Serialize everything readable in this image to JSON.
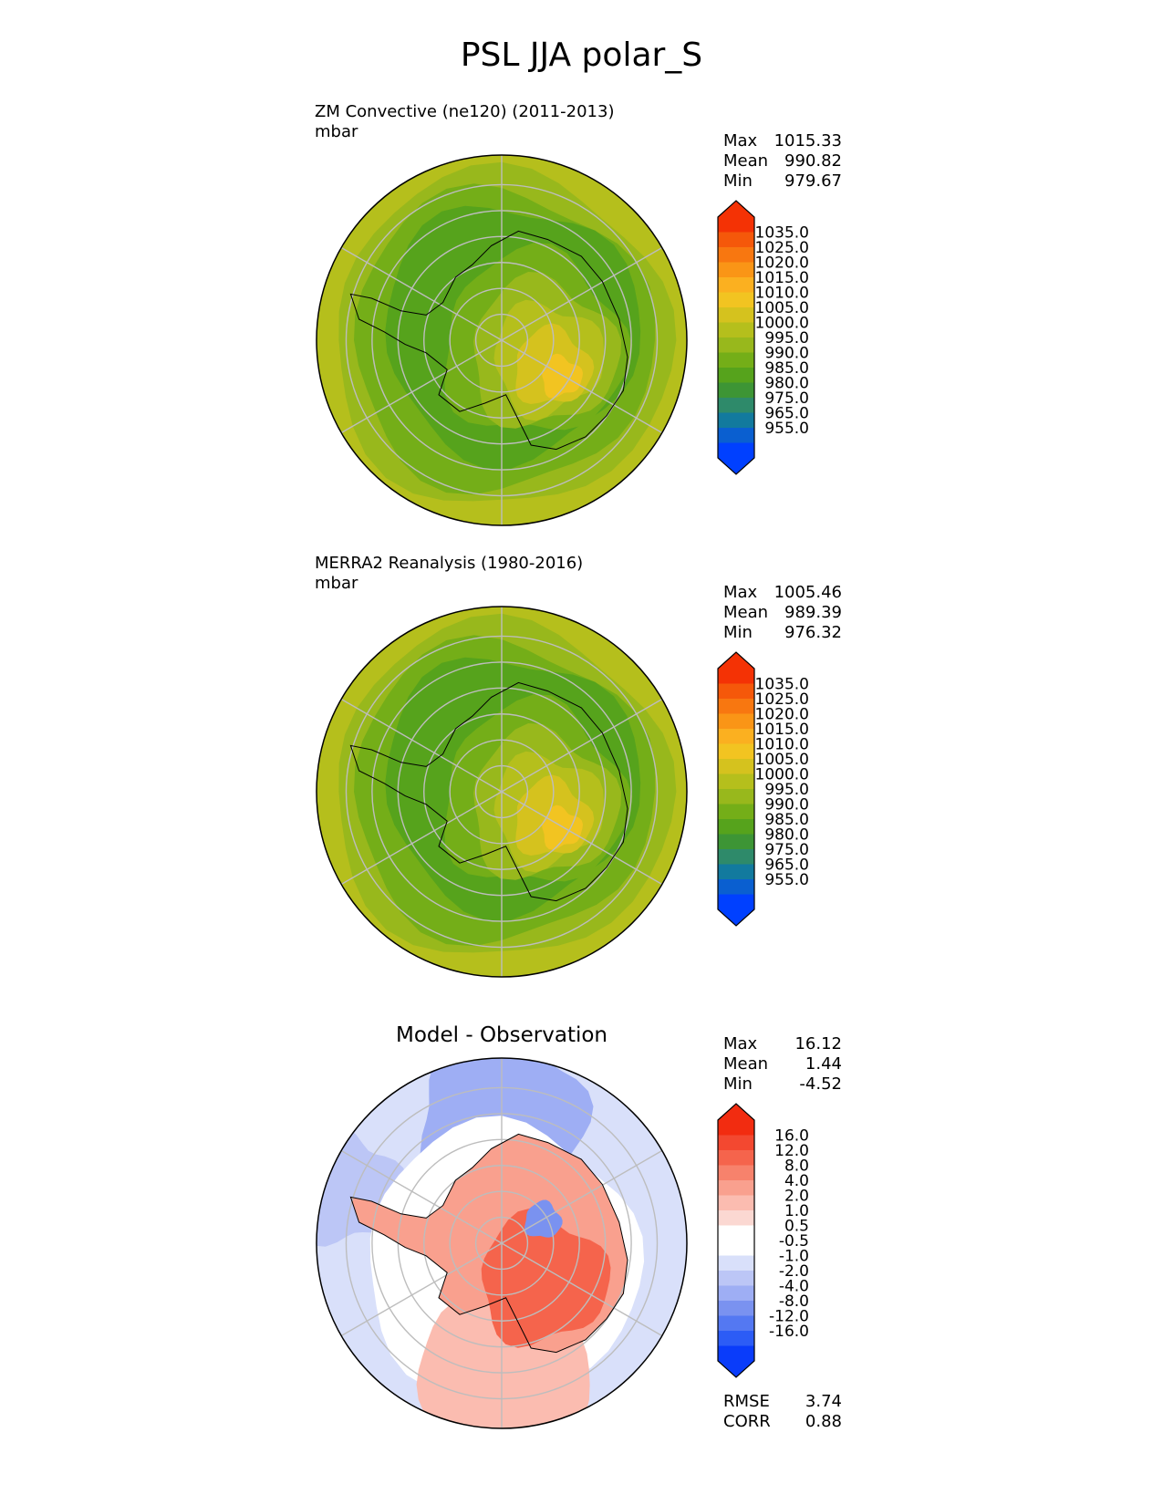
{
  "figure_title": "PSL JJA polar_S",
  "colors": {
    "abs_levels": [
      "#0040ff",
      "#0a5fd0",
      "#127a9e",
      "#2e8a6a",
      "#3d9535",
      "#56a31c",
      "#74ae18",
      "#98b81c",
      "#b5bf1c",
      "#d5c21e",
      "#f2c421",
      "#fbb020",
      "#fa9516",
      "#f87710",
      "#f5580a",
      "#f43205"
    ],
    "diff_levels": [
      "#0a3cfa",
      "#2c5cf6",
      "#5478f2",
      "#7a92f0",
      "#9eaef4",
      "#bcc6f6",
      "#d9e0fa",
      "#ffffff",
      "#ffffff",
      "#fbd8d2",
      "#fbbcb0",
      "#f9a08e",
      "#f7826c",
      "#f5644c",
      "#f34830",
      "#f22c10"
    ],
    "grid": "#bdbdbd",
    "coast": "#000000"
  },
  "panels": {
    "test": {
      "title": "ZM Convective (ne120) (2011-2013)",
      "units": "mbar",
      "stats": [
        {
          "label": "Max",
          "value": "1015.33"
        },
        {
          "label": "Mean",
          "value": "990.82"
        },
        {
          "label": "Min",
          "value": "979.67"
        }
      ]
    },
    "ref": {
      "title": "MERRA2 Reanalysis (1980-2016)",
      "units": "mbar",
      "stats": [
        {
          "label": "Max",
          "value": "1005.46"
        },
        {
          "label": "Mean",
          "value": "989.39"
        },
        {
          "label": "Min",
          "value": "976.32"
        }
      ]
    },
    "diff": {
      "title": "Model - Observation",
      "stats": [
        {
          "label": "Max",
          "value": "16.12"
        },
        {
          "label": "Mean",
          "value": "1.44"
        },
        {
          "label": "Min",
          "value": "-4.52"
        }
      ],
      "metrics": [
        {
          "label": "RMSE",
          "value": "3.74"
        },
        {
          "label": "CORR",
          "value": "0.88"
        }
      ]
    }
  },
  "chart_data": [
    {
      "type": "heatmap",
      "projection": "south polar stereographic",
      "title": "ZM Convective (ne120) (2011-2013)",
      "units": "mbar",
      "colorbar_ticks": [
        "1035.0",
        "1025.0",
        "1020.0",
        "1015.0",
        "1010.0",
        "1005.0",
        "1000.0",
        "995.0",
        "990.0",
        "985.0",
        "980.0",
        "975.0",
        "965.0",
        "955.0"
      ],
      "stats": {
        "max": 1015.33,
        "mean": 990.82,
        "min": 979.67
      }
    },
    {
      "type": "heatmap",
      "projection": "south polar stereographic",
      "title": "MERRA2 Reanalysis (1980-2016)",
      "units": "mbar",
      "colorbar_ticks": [
        "1035.0",
        "1025.0",
        "1020.0",
        "1015.0",
        "1010.0",
        "1005.0",
        "1000.0",
        "995.0",
        "990.0",
        "985.0",
        "980.0",
        "975.0",
        "965.0",
        "955.0"
      ],
      "stats": {
        "max": 1005.46,
        "mean": 989.39,
        "min": 976.32
      }
    },
    {
      "type": "heatmap",
      "projection": "south polar stereographic",
      "title": "Model - Observation",
      "colorbar_ticks": [
        "16.0",
        "12.0",
        "8.0",
        "4.0",
        "2.0",
        "1.0",
        "0.5",
        "-0.5",
        "-1.0",
        "-2.0",
        "-4.0",
        "-8.0",
        "-12.0",
        "-16.0"
      ],
      "stats": {
        "max": 16.12,
        "mean": 1.44,
        "min": -4.52
      },
      "metrics": {
        "rmse": 3.74,
        "corr": 0.88
      }
    }
  ]
}
